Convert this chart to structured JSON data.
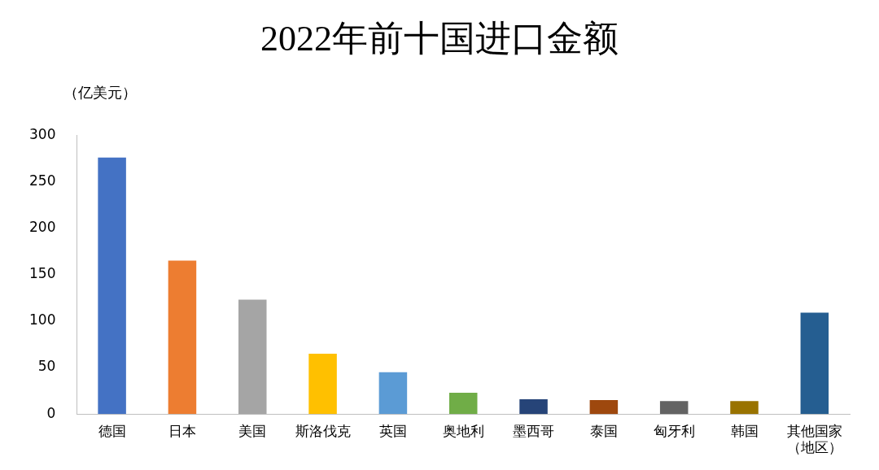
{
  "chart_data": {
    "type": "bar",
    "title": "2022年前十国进口金额",
    "ylabel": "（亿美元）",
    "categories": [
      "德国",
      "日本",
      "美国",
      "斯洛伐克",
      "英国",
      "奥地利",
      "墨西哥",
      "泰国",
      "匈牙利",
      "韩国",
      "其他国家（地区）"
    ],
    "values": [
      276,
      165,
      123,
      65,
      45,
      23,
      16,
      15,
      14,
      14,
      109
    ],
    "colors": [
      "#4472c4",
      "#ed7d31",
      "#a5a5a5",
      "#ffc000",
      "#5b9bd5",
      "#70ad47",
      "#264478",
      "#9e480e",
      "#636363",
      "#997300",
      "#255e91"
    ],
    "ylim": [
      0,
      300
    ],
    "yticks": [
      0,
      50,
      100,
      150,
      200,
      250,
      300
    ],
    "grid": false,
    "legend": false
  }
}
